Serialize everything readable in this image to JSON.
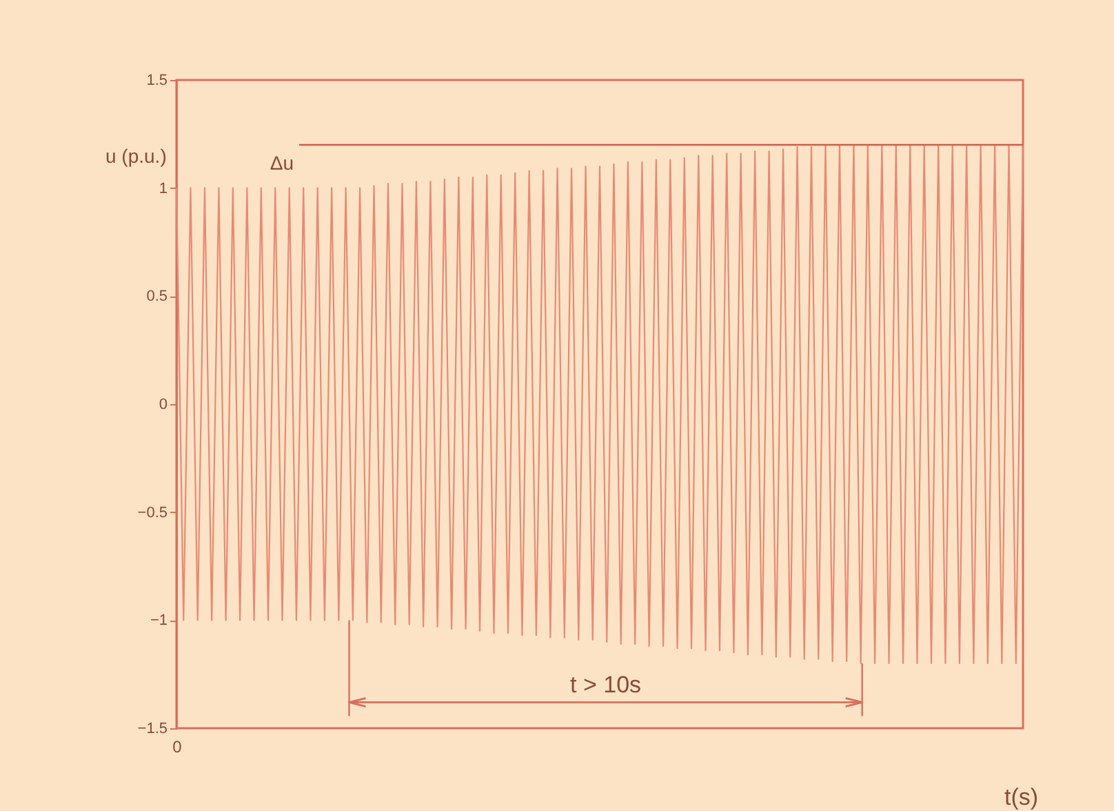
{
  "chart_data": {
    "type": "line",
    "xlabel": "t(s)",
    "ylabel": "u (p.u.)",
    "categories": [
      "0",
      null,
      null,
      null,
      null,
      null,
      null,
      null,
      null,
      null,
      null,
      null,
      null,
      null,
      null,
      null,
      null,
      null,
      null,
      null,
      null,
      null,
      null,
      null,
      null,
      null,
      null,
      null,
      null,
      null,
      null,
      null,
      null,
      null,
      null,
      null,
      null,
      null,
      null,
      null,
      null,
      null,
      null,
      null,
      null,
      null,
      null,
      null,
      null,
      null,
      null,
      null,
      null,
      null,
      null,
      null,
      null,
      null,
      null,
      null,
      null,
      null,
      null,
      null,
      null,
      null,
      null,
      null,
      null,
      null,
      null,
      null,
      null,
      null,
      null,
      null,
      null,
      null,
      null,
      null,
      null,
      null,
      null,
      null,
      null,
      null,
      null,
      null,
      null,
      null,
      null,
      null,
      null,
      null,
      null,
      null,
      null,
      null,
      null,
      null,
      null,
      null,
      null,
      null,
      null,
      null,
      null,
      null,
      null,
      null,
      null,
      null,
      null,
      null,
      null,
      null,
      null,
      null,
      null,
      null,
      null
    ],
    "series": [
      {
        "color": "#e88a74",
        "values": [
          1,
          -1,
          1,
          -1,
          1,
          -1,
          1,
          -1,
          1,
          -1,
          1,
          -1,
          1,
          -1,
          1,
          -1,
          1,
          -1,
          1,
          -1,
          1,
          -1,
          1,
          -1,
          1,
          -1,
          1,
          -1.01,
          1.01,
          -1.01,
          1.02,
          -1.02,
          1.02,
          -1.02,
          1.03,
          -1.03,
          1.03,
          -1.03,
          1.04,
          -1.04,
          1.05,
          -1.04,
          1.05,
          -1.05,
          1.06,
          -1.06,
          1.06,
          -1.06,
          1.07,
          -1.07,
          1.08,
          -1.07,
          1.08,
          -1.08,
          1.09,
          -1.08,
          1.09,
          -1.09,
          1.1,
          -1.09,
          1.1,
          -1.1,
          1.11,
          -1.11,
          1.12,
          -1.11,
          1.12,
          -1.12,
          1.13,
          -1.12,
          1.13,
          -1.13,
          1.14,
          -1.13,
          1.15,
          -1.14,
          1.15,
          -1.14,
          1.16,
          -1.15,
          1.16,
          -1.16,
          1.17,
          -1.16,
          1.17,
          -1.17,
          1.18,
          -1.17,
          1.19,
          -1.18,
          1.19,
          -1.18,
          1.2,
          -1.19,
          1.2,
          -1.19,
          1.2,
          -1.2,
          1.2,
          -1.2,
          1.2,
          -1.2,
          1.2,
          -1.2,
          1.2,
          -1.2,
          1.2,
          -1.2,
          1.2,
          -1.2,
          1.2,
          -1.2,
          1.2,
          -1.2,
          1.2,
          -1.2,
          1.2,
          -1.2,
          1.2,
          -1.2,
          1.2
        ]
      }
    ],
    "ylim": [
      -1.5,
      1.5
    ],
    "yticks": [
      -1.5,
      -1,
      -0.5,
      0,
      0.5,
      1,
      1.5
    ],
    "ref_lines": [
      {
        "axis": "y",
        "value": 1.2,
        "label": "Δu",
        "color": "#c8604c"
      },
      {
        "axis": "y",
        "value": -1.38,
        "label": "t > 10s",
        "color": "#d9705c"
      }
    ]
  }
}
